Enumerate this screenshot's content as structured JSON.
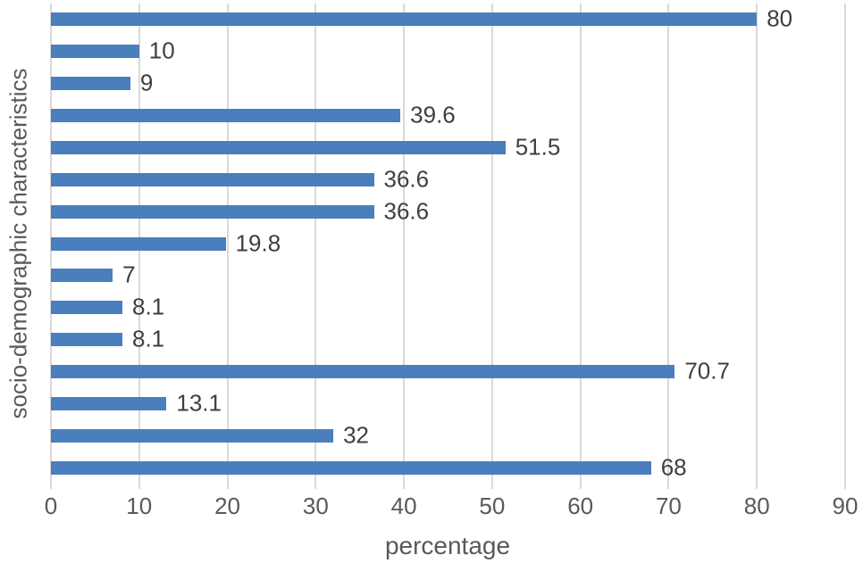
{
  "chart_data": {
    "type": "bar",
    "orientation": "horizontal",
    "title": "",
    "xlabel": "percentage",
    "ylabel": "socio-demographic characteristics",
    "values": [
      80,
      10,
      9,
      39.6,
      51.5,
      36.6,
      36.6,
      19.8,
      7,
      8.1,
      8.1,
      70.7,
      13.1,
      32,
      68
    ],
    "data_labels": [
      "80",
      "10",
      "9",
      "39.6",
      "51.5",
      "36.6",
      "36.6",
      "19.8",
      "7",
      "8.1",
      "8.1",
      "70.7",
      "13.1",
      "32",
      "68"
    ],
    "categories_shown": false,
    "xlim": [
      0,
      90
    ],
    "x_ticks": [
      0,
      10,
      20,
      30,
      40,
      50,
      60,
      70,
      80,
      90
    ],
    "grid": true,
    "legend": false,
    "colors": {
      "bar": "#4a7ebc",
      "gridline": "#d9d9d9",
      "axis_text": "#595959",
      "value_label_text": "#3f3f3f",
      "background": "#ffffff"
    }
  }
}
